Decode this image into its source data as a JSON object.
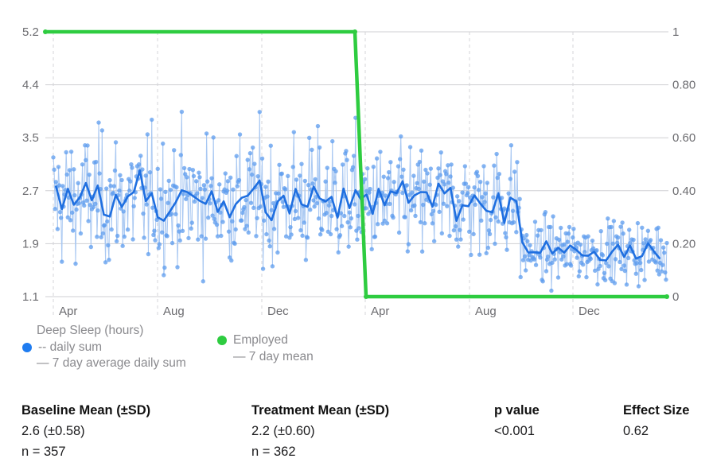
{
  "chart_data": {
    "type": "scatter",
    "left_axis": {
      "ticks": [
        "5.2",
        "4.4",
        "3.5",
        "2.7",
        "1.9",
        "1.1"
      ],
      "ylim": [
        1.1,
        5.2
      ]
    },
    "right_axis": {
      "ticks": [
        "1",
        "0.80",
        "0.60",
        "0.40",
        "0.20",
        "0"
      ],
      "ylim": [
        0,
        1
      ]
    },
    "x_ticks": [
      "Apr",
      "Aug",
      "Dec",
      "Apr",
      "Aug",
      "Dec"
    ],
    "grid": true,
    "series": [
      {
        "name": "Deep Sleep (hours)",
        "legend_lines": [
          "-- daily sum",
          "— 7 day average daily sum"
        ],
        "color": "#2f7ee8",
        "baseline_phase": {
          "n": 357,
          "mean": 2.6,
          "sd": 0.58
        },
        "treatment_phase": {
          "n": 362,
          "mean": 2.2,
          "sd": 0.6
        },
        "treatment_late_level": 1.8
      },
      {
        "name": "Employed",
        "legend_lines": [
          "— 7 day mean"
        ],
        "color": "#2ecc40",
        "axis": "right",
        "values": [
          {
            "phase": "baseline",
            "y": 1
          },
          {
            "phase": "treatment",
            "y": 0
          }
        ]
      }
    ]
  },
  "stats": {
    "baseline": {
      "header": "Baseline Mean (±SD)",
      "value": "2.6 (±0.58)",
      "n": "n = 357"
    },
    "treatment": {
      "header": "Treatment Mean (±SD)",
      "value": "2.2 (±0.60)",
      "n": "n = 362"
    },
    "p": {
      "header": "p value",
      "value": "<0.001"
    },
    "effect": {
      "header": "Effect Size",
      "value": "0.62"
    }
  }
}
